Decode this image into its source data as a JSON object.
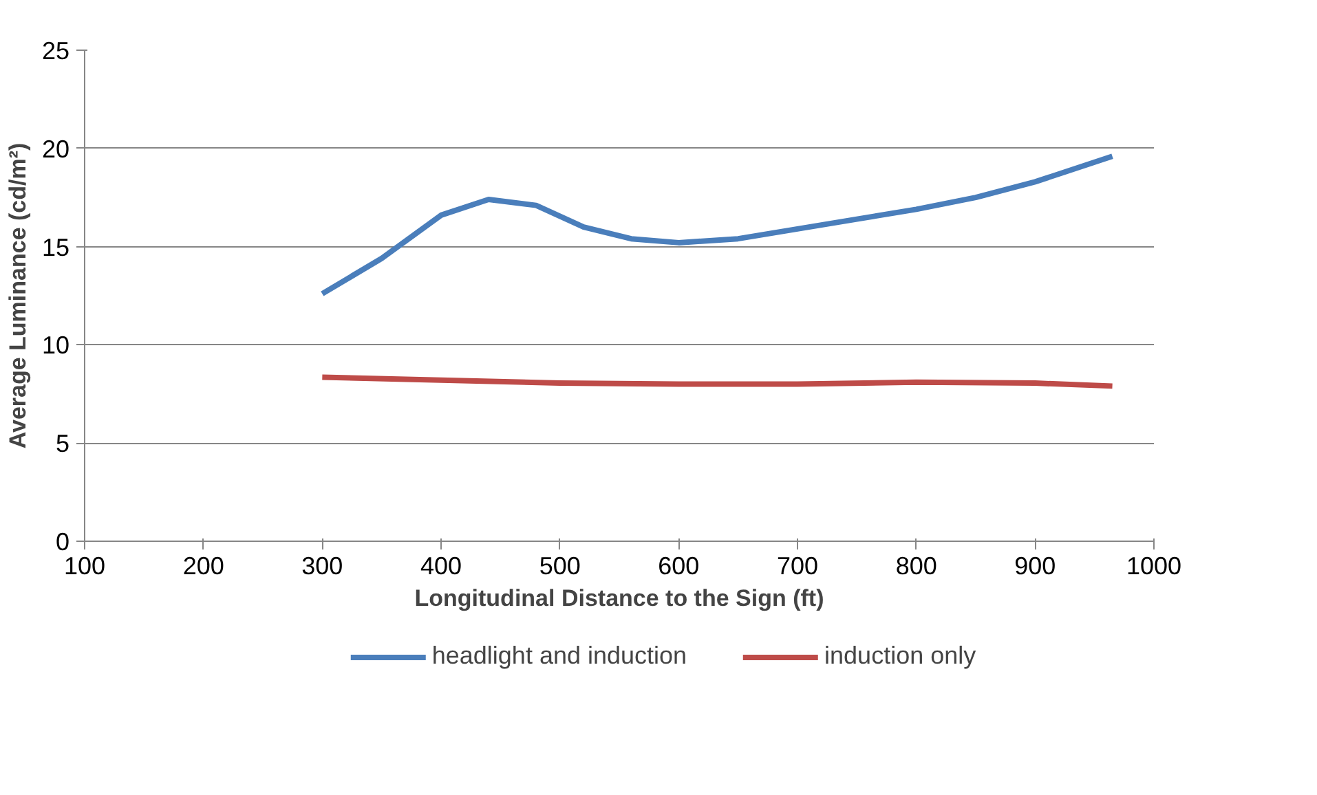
{
  "chart_data": {
    "type": "line",
    "xlabel": "Longitudinal Distance to the Sign (ft)",
    "ylabel": "Average Luminance (cd/m²)",
    "xlim": [
      100,
      1000
    ],
    "xticks": [
      100,
      200,
      300,
      400,
      500,
      600,
      700,
      800,
      900,
      1000
    ],
    "ylim": [
      0,
      25
    ],
    "yticks": [
      0,
      5,
      10,
      15,
      20,
      25
    ],
    "grid": "y",
    "legend": "bottom",
    "marker": "none",
    "line_style": "solid",
    "series": [
      {
        "name": "headlight and induction",
        "color": "#4a7ebb",
        "x": [
          300,
          350,
          400,
          440,
          480,
          520,
          560,
          600,
          650,
          700,
          750,
          800,
          850,
          900,
          965
        ],
        "values": [
          12.6,
          14.4,
          16.6,
          17.4,
          17.1,
          16.0,
          15.4,
          15.2,
          15.4,
          15.9,
          16.4,
          16.9,
          17.5,
          18.3,
          19.6
        ]
      },
      {
        "name": "induction only",
        "color": "#be4b48",
        "x": [
          300,
          400,
          500,
          600,
          700,
          800,
          900,
          965
        ],
        "values": [
          8.35,
          8.2,
          8.05,
          8.0,
          8.0,
          8.1,
          8.05,
          7.9
        ]
      }
    ]
  }
}
